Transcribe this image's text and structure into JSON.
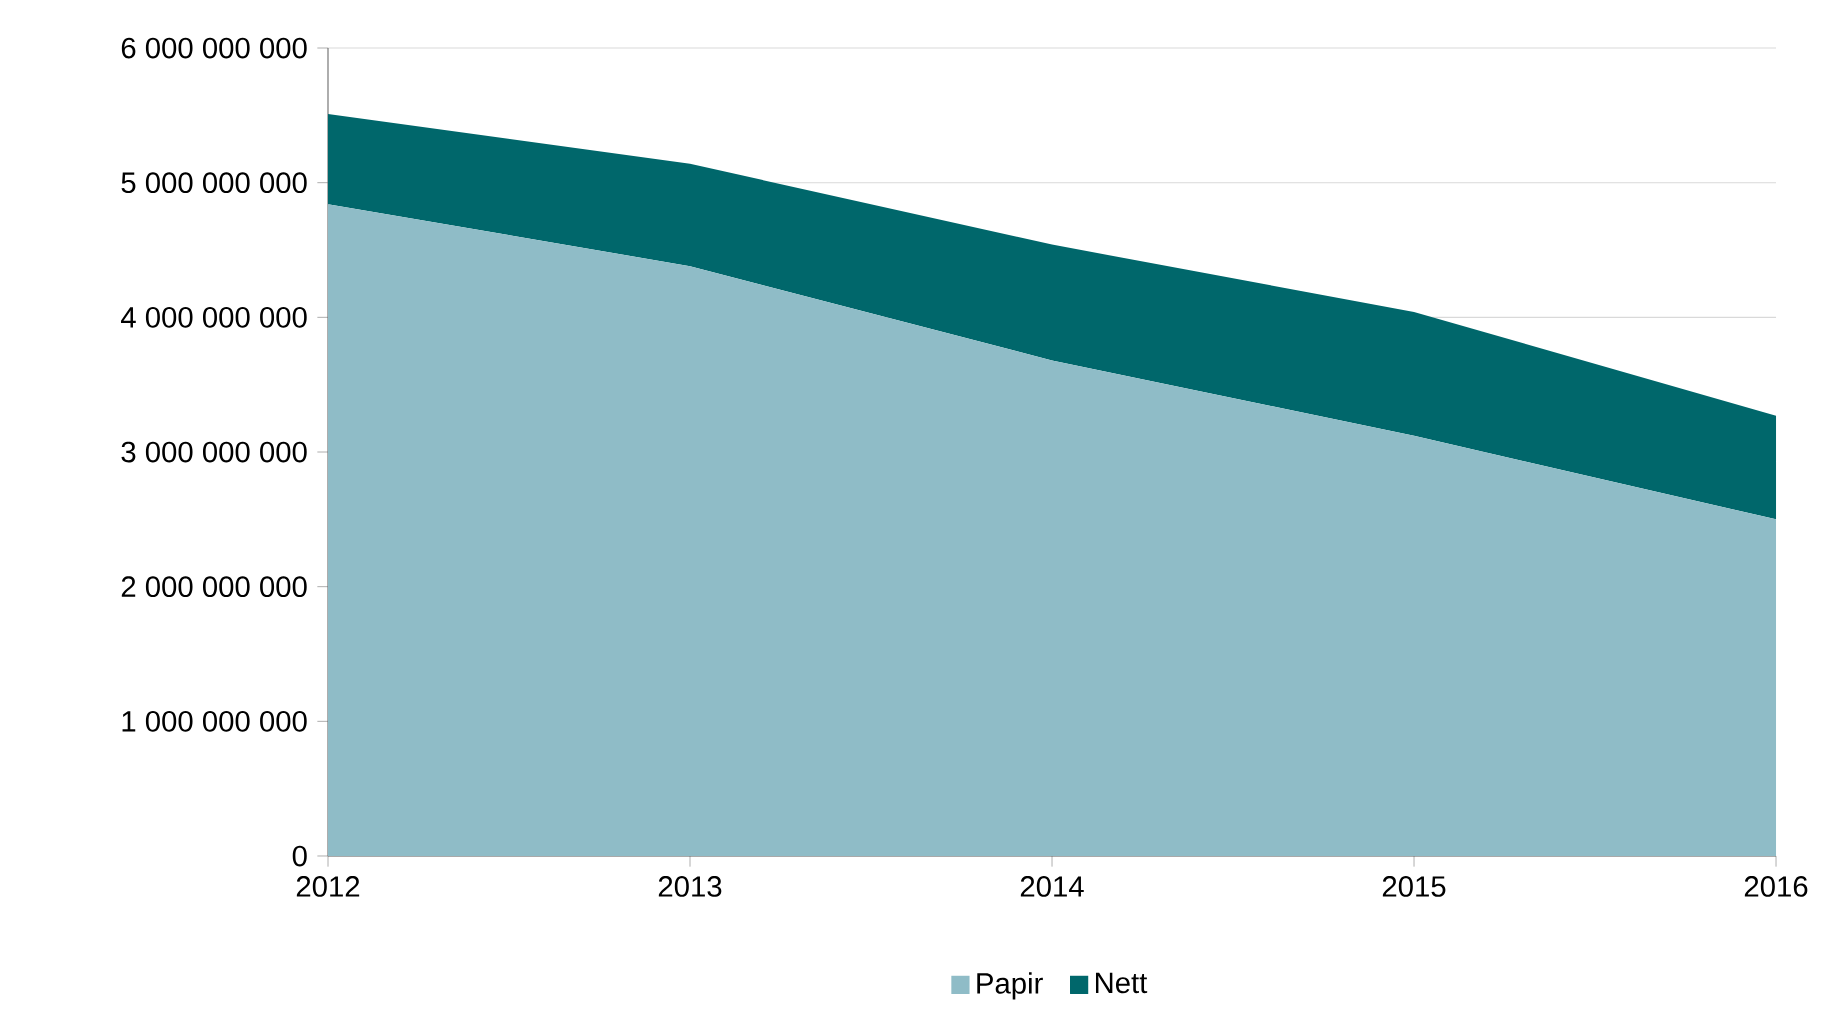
{
  "chart_data": {
    "type": "area",
    "stacked": true,
    "x": [
      2012,
      2013,
      2014,
      2015,
      2016
    ],
    "series": [
      {
        "name": "Papir",
        "color": "#8fbcc7",
        "values": [
          4840000000,
          4380000000,
          3680000000,
          3120000000,
          2500000000
        ]
      },
      {
        "name": "Nett",
        "color": "#00676b",
        "values": [
          670000000,
          760000000,
          860000000,
          920000000,
          770000000
        ]
      }
    ],
    "xlim": [
      2012,
      2016
    ],
    "xticks": [
      2012,
      2013,
      2014,
      2015,
      2016
    ],
    "ylim": [
      0,
      6000000000
    ],
    "yticks": [
      0,
      {
        "value": 1000000000,
        "label": "1 000 000 000"
      },
      {
        "value": 2000000000,
        "label": "2 000 000 000"
      },
      {
        "value": 3000000000,
        "label": "3 000 000 000"
      },
      {
        "value": 4000000000,
        "label": "4 000 000 000"
      },
      {
        "value": 5000000000,
        "label": "5 000 000 000"
      },
      {
        "value": 6000000000,
        "label": "6 000 000 000"
      }
    ],
    "grid": "y",
    "legend": "bottom"
  }
}
